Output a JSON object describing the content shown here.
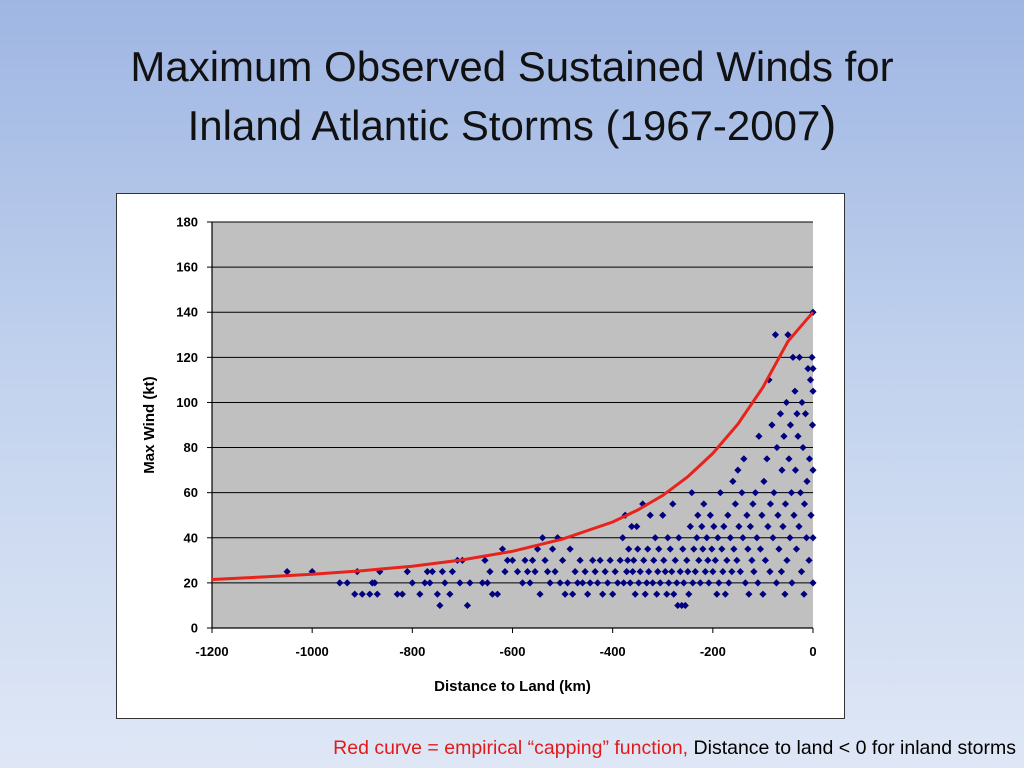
{
  "slide": {
    "title_line1": "Maximum Observed Sustained Winds for",
    "title_line2": "Inland Atlantic Storms (1967-2007",
    "title_paren": ")",
    "footnote_red": "Red curve = empirical “capping” function,",
    "footnote_black": "Distance to land < 0 for inland storms"
  },
  "colors": {
    "plot_bg": "#c0c0c0",
    "points": "#000080",
    "curve": "#e8231c",
    "gridline": "#000000"
  },
  "chart_data": {
    "type": "scatter",
    "xlabel": "Distance to Land (km)",
    "ylabel": "Max Wind (kt)",
    "xlim": [
      -1200,
      0
    ],
    "ylim": [
      0,
      180
    ],
    "x_ticks": [
      -1200,
      -1000,
      -800,
      -600,
      -400,
      -200,
      0
    ],
    "y_ticks": [
      0,
      20,
      40,
      60,
      80,
      100,
      120,
      140,
      160,
      180
    ],
    "grid": "horizontal",
    "legend": "none",
    "series": [
      {
        "type": "scatter",
        "marker": "diamond",
        "points": [
          [
            -1050,
            25
          ],
          [
            -1000,
            25
          ],
          [
            -945,
            20
          ],
          [
            -930,
            20
          ],
          [
            -915,
            15
          ],
          [
            -910,
            25
          ],
          [
            -900,
            15
          ],
          [
            -885,
            15
          ],
          [
            -880,
            20
          ],
          [
            -875,
            20
          ],
          [
            -870,
            15
          ],
          [
            -865,
            25
          ],
          [
            -830,
            15
          ],
          [
            -820,
            15
          ],
          [
            -810,
            25
          ],
          [
            -800,
            20
          ],
          [
            -785,
            15
          ],
          [
            -775,
            20
          ],
          [
            -770,
            25
          ],
          [
            -765,
            20
          ],
          [
            -760,
            25
          ],
          [
            -750,
            15
          ],
          [
            -745,
            10
          ],
          [
            -740,
            25
          ],
          [
            -735,
            20
          ],
          [
            -725,
            15
          ],
          [
            -720,
            25
          ],
          [
            -710,
            30
          ],
          [
            -705,
            20
          ],
          [
            -700,
            30
          ],
          [
            -690,
            10
          ],
          [
            -685,
            20
          ],
          [
            -660,
            20
          ],
          [
            -655,
            30
          ],
          [
            -650,
            20
          ],
          [
            -645,
            25
          ],
          [
            -640,
            15
          ],
          [
            -630,
            15
          ],
          [
            -620,
            35
          ],
          [
            -615,
            25
          ],
          [
            -610,
            30
          ],
          [
            -600,
            30
          ],
          [
            -590,
            25
          ],
          [
            -580,
            20
          ],
          [
            -575,
            30
          ],
          [
            -570,
            25
          ],
          [
            -565,
            20
          ],
          [
            -560,
            30
          ],
          [
            -555,
            25
          ],
          [
            -550,
            35
          ],
          [
            -545,
            15
          ],
          [
            -540,
            40
          ],
          [
            -535,
            30
          ],
          [
            -530,
            25
          ],
          [
            -525,
            20
          ],
          [
            -520,
            35
          ],
          [
            -515,
            25
          ],
          [
            -510,
            40
          ],
          [
            -505,
            20
          ],
          [
            -500,
            30
          ],
          [
            -495,
            15
          ],
          [
            -490,
            20
          ],
          [
            -485,
            35
          ],
          [
            -480,
            15
          ],
          [
            -475,
            25
          ],
          [
            -470,
            20
          ],
          [
            -465,
            30
          ],
          [
            -460,
            20
          ],
          [
            -455,
            25
          ],
          [
            -450,
            15
          ],
          [
            -445,
            20
          ],
          [
            -440,
            30
          ],
          [
            -435,
            25
          ],
          [
            -430,
            20
          ],
          [
            -425,
            30
          ],
          [
            -420,
            15
          ],
          [
            -415,
            25
          ],
          [
            -410,
            20
          ],
          [
            -405,
            30
          ],
          [
            -400,
            15
          ],
          [
            -395,
            25
          ],
          [
            -390,
            20
          ],
          [
            -385,
            30
          ],
          [
            -380,
            40
          ],
          [
            -378,
            20
          ],
          [
            -375,
            50
          ],
          [
            -372,
            25
          ],
          [
            -370,
            30
          ],
          [
            -368,
            35
          ],
          [
            -365,
            20
          ],
          [
            -362,
            45
          ],
          [
            -360,
            25
          ],
          [
            -358,
            30
          ],
          [
            -355,
            15
          ],
          [
            -352,
            45
          ],
          [
            -350,
            35
          ],
          [
            -348,
            20
          ],
          [
            -345,
            25
          ],
          [
            -340,
            55
          ],
          [
            -338,
            30
          ],
          [
            -335,
            15
          ],
          [
            -332,
            20
          ],
          [
            -330,
            35
          ],
          [
            -328,
            25
          ],
          [
            -325,
            50
          ],
          [
            -320,
            20
          ],
          [
            -318,
            30
          ],
          [
            -315,
            40
          ],
          [
            -312,
            15
          ],
          [
            -310,
            25
          ],
          [
            -308,
            35
          ],
          [
            -305,
            20
          ],
          [
            -300,
            50
          ],
          [
            -298,
            30
          ],
          [
            -295,
            25
          ],
          [
            -292,
            15
          ],
          [
            -290,
            40
          ],
          [
            -288,
            20
          ],
          [
            -285,
            35
          ],
          [
            -282,
            25
          ],
          [
            -280,
            55
          ],
          [
            -278,
            15
          ],
          [
            -275,
            30
          ],
          [
            -272,
            20
          ],
          [
            -270,
            10
          ],
          [
            -268,
            40
          ],
          [
            -265,
            25
          ],
          [
            -262,
            10
          ],
          [
            -260,
            35
          ],
          [
            -258,
            20
          ],
          [
            -255,
            10
          ],
          [
            -252,
            30
          ],
          [
            -250,
            25
          ],
          [
            -248,
            15
          ],
          [
            -245,
            45
          ],
          [
            -242,
            60
          ],
          [
            -240,
            20
          ],
          [
            -238,
            35
          ],
          [
            -235,
            25
          ],
          [
            -232,
            40
          ],
          [
            -230,
            50
          ],
          [
            -228,
            30
          ],
          [
            -225,
            20
          ],
          [
            -222,
            45
          ],
          [
            -220,
            35
          ],
          [
            -218,
            55
          ],
          [
            -215,
            25
          ],
          [
            -212,
            40
          ],
          [
            -210,
            30
          ],
          [
            -208,
            20
          ],
          [
            -205,
            50
          ],
          [
            -202,
            35
          ],
          [
            -200,
            25
          ],
          [
            -198,
            45
          ],
          [
            -195,
            30
          ],
          [
            -192,
            15
          ],
          [
            -190,
            40
          ],
          [
            -188,
            20
          ],
          [
            -185,
            60
          ],
          [
            -182,
            35
          ],
          [
            -180,
            25
          ],
          [
            -178,
            45
          ],
          [
            -175,
            15
          ],
          [
            -172,
            30
          ],
          [
            -170,
            50
          ],
          [
            -168,
            20
          ],
          [
            -165,
            40
          ],
          [
            -162,
            25
          ],
          [
            -160,
            65
          ],
          [
            -158,
            35
          ],
          [
            -155,
            55
          ],
          [
            -152,
            30
          ],
          [
            -150,
            70
          ],
          [
            -148,
            45
          ],
          [
            -145,
            25
          ],
          [
            -142,
            60
          ],
          [
            -140,
            40
          ],
          [
            -138,
            75
          ],
          [
            -135,
            20
          ],
          [
            -132,
            50
          ],
          [
            -130,
            35
          ],
          [
            -128,
            15
          ],
          [
            -125,
            45
          ],
          [
            -122,
            30
          ],
          [
            -120,
            55
          ],
          [
            -118,
            25
          ],
          [
            -115,
            60
          ],
          [
            -112,
            40
          ],
          [
            -110,
            20
          ],
          [
            -108,
            85
          ],
          [
            -105,
            35
          ],
          [
            -102,
            50
          ],
          [
            -100,
            15
          ],
          [
            -98,
            65
          ],
          [
            -95,
            30
          ],
          [
            -92,
            75
          ],
          [
            -90,
            45
          ],
          [
            -88,
            110
          ],
          [
            -86,
            25
          ],
          [
            -85,
            55
          ],
          [
            -82,
            90
          ],
          [
            -80,
            40
          ],
          [
            -78,
            60
          ],
          [
            -75,
            130
          ],
          [
            -73,
            20
          ],
          [
            -72,
            80
          ],
          [
            -70,
            50
          ],
          [
            -68,
            35
          ],
          [
            -65,
            95
          ],
          [
            -63,
            25
          ],
          [
            -62,
            70
          ],
          [
            -60,
            45
          ],
          [
            -58,
            85
          ],
          [
            -56,
            15
          ],
          [
            -55,
            55
          ],
          [
            -53,
            100
          ],
          [
            -52,
            30
          ],
          [
            -50,
            130
          ],
          [
            -48,
            75
          ],
          [
            -46,
            40
          ],
          [
            -45,
            90
          ],
          [
            -43,
            60
          ],
          [
            -42,
            20
          ],
          [
            -40,
            120
          ],
          [
            -38,
            50
          ],
          [
            -36,
            105
          ],
          [
            -35,
            70
          ],
          [
            -33,
            35
          ],
          [
            -32,
            95
          ],
          [
            -30,
            85
          ],
          [
            -28,
            45
          ],
          [
            -27,
            120
          ],
          [
            -25,
            60
          ],
          [
            -23,
            25
          ],
          [
            -22,
            100
          ],
          [
            -20,
            80
          ],
          [
            -18,
            15
          ],
          [
            -17,
            55
          ],
          [
            -15,
            95
          ],
          [
            -13,
            40
          ],
          [
            -12,
            65
          ],
          [
            -10,
            115
          ],
          [
            -8,
            30
          ],
          [
            -7,
            75
          ],
          [
            -5,
            110
          ],
          [
            -4,
            50
          ],
          [
            -2,
            120
          ],
          [
            -1,
            90
          ],
          [
            0,
            140
          ],
          [
            0,
            115
          ],
          [
            0,
            105
          ],
          [
            0,
            70
          ],
          [
            0,
            40
          ],
          [
            0,
            20
          ]
        ]
      },
      {
        "type": "line",
        "name": "",
        "points": [
          [
            -1200,
            21.5
          ],
          [
            -1100,
            22.6
          ],
          [
            -1000,
            23.8
          ],
          [
            -900,
            25.4
          ],
          [
            -800,
            27.4
          ],
          [
            -700,
            30.2
          ],
          [
            -600,
            34.0
          ],
          [
            -500,
            39.4
          ],
          [
            -400,
            47.0
          ],
          [
            -350,
            52.3
          ],
          [
            -300,
            58.8
          ],
          [
            -250,
            67.1
          ],
          [
            -200,
            77.4
          ],
          [
            -150,
            90.4
          ],
          [
            -100,
            106.7
          ],
          [
            -50,
            127.1
          ],
          [
            0,
            140
          ]
        ]
      }
    ]
  }
}
